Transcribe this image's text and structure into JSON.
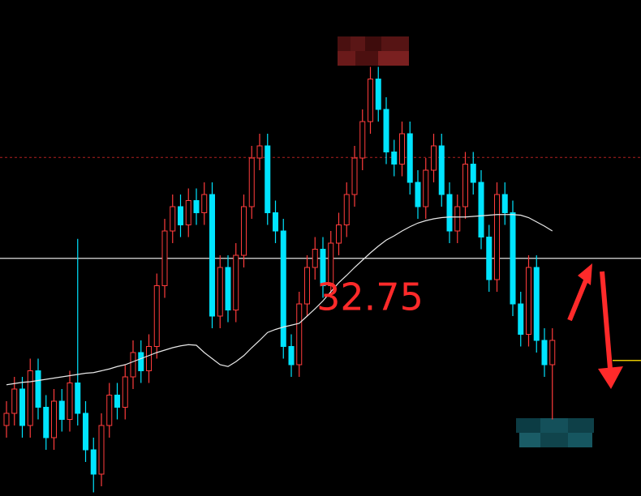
{
  "chart_data": {
    "type": "candlestick",
    "ylim": [
      29,
      37
    ],
    "up_color": "#ff3c3c",
    "down_color": "#00e4ff",
    "ma_color": "#e8e8e8",
    "open": [
      30.0,
      30.2,
      30.6,
      30.0,
      30.9,
      30.3,
      29.8,
      30.4,
      30.1,
      30.7,
      30.2,
      29.6,
      29.2,
      30.0,
      30.5,
      30.3,
      30.8,
      31.2,
      30.9,
      31.3,
      32.3,
      33.2,
      33.6,
      33.3,
      33.7,
      33.5,
      33.8,
      31.8,
      32.6,
      31.9,
      32.8,
      33.6,
      34.4,
      34.6,
      33.5,
      33.2,
      31.3,
      31.0,
      32.0,
      32.6,
      32.9,
      32.3,
      33.0,
      33.3,
      33.8,
      34.4,
      35.0,
      35.7,
      35.2,
      34.5,
      34.3,
      34.8,
      34.0,
      33.6,
      34.2,
      34.6,
      33.8,
      33.2,
      33.6,
      34.3,
      34.0,
      33.1,
      32.4,
      33.8,
      33.5,
      32.0,
      31.5,
      32.6,
      31.4,
      31.0
    ],
    "high": [
      30.4,
      30.8,
      30.8,
      31.1,
      31.1,
      30.5,
      30.6,
      30.6,
      30.9,
      33.07,
      30.4,
      29.8,
      30.2,
      30.7,
      30.7,
      31.0,
      31.4,
      31.4,
      31.5,
      32.5,
      33.4,
      33.8,
      33.8,
      33.9,
      33.9,
      34.0,
      34.0,
      32.8,
      32.8,
      33.0,
      33.8,
      34.6,
      34.8,
      34.8,
      33.7,
      33.4,
      31.5,
      32.2,
      32.8,
      33.1,
      33.1,
      33.2,
      33.5,
      34.0,
      34.6,
      35.2,
      35.9,
      35.9,
      35.4,
      34.7,
      35.0,
      35.0,
      34.2,
      34.4,
      34.8,
      34.8,
      34.0,
      33.8,
      34.5,
      34.5,
      34.2,
      33.3,
      34.0,
      34.0,
      33.7,
      32.2,
      32.8,
      32.8,
      31.6,
      31.6
    ],
    "low": [
      29.8,
      30.0,
      29.8,
      29.8,
      30.1,
      29.6,
      29.6,
      29.9,
      29.9,
      30.0,
      29.4,
      28.9,
      29.0,
      29.8,
      30.1,
      30.1,
      30.6,
      30.7,
      30.7,
      31.1,
      32.1,
      33.0,
      33.1,
      33.1,
      33.3,
      33.3,
      31.6,
      31.6,
      31.7,
      31.7,
      32.6,
      33.4,
      34.2,
      33.3,
      33.0,
      31.1,
      30.8,
      30.8,
      31.8,
      32.4,
      32.1,
      32.1,
      32.8,
      33.1,
      33.6,
      34.2,
      34.8,
      35.0,
      34.3,
      34.1,
      34.1,
      33.8,
      33.4,
      33.4,
      34.0,
      33.6,
      33.0,
      33.0,
      33.4,
      33.8,
      32.9,
      32.2,
      32.2,
      33.3,
      31.8,
      31.3,
      31.3,
      31.2,
      30.8,
      30.1
    ],
    "close": [
      30.2,
      30.6,
      30.0,
      30.9,
      30.3,
      29.8,
      30.4,
      30.1,
      30.7,
      30.2,
      29.6,
      29.2,
      30.0,
      30.5,
      30.3,
      30.8,
      31.2,
      30.9,
      31.3,
      32.3,
      33.2,
      33.6,
      33.3,
      33.7,
      33.5,
      33.8,
      31.8,
      32.6,
      31.9,
      32.8,
      33.6,
      34.4,
      34.6,
      33.5,
      33.2,
      31.3,
      31.0,
      32.0,
      32.6,
      32.9,
      32.3,
      33.0,
      33.3,
      33.8,
      34.4,
      35.0,
      35.7,
      35.2,
      34.5,
      34.3,
      34.8,
      34.0,
      33.6,
      34.2,
      34.6,
      33.8,
      33.2,
      33.6,
      34.3,
      34.0,
      33.1,
      32.4,
      33.8,
      33.5,
      32.0,
      31.5,
      32.6,
      31.4,
      31.0,
      31.4
    ],
    "moving_average": [
      30.67,
      30.69,
      30.71,
      30.72,
      30.74,
      30.76,
      30.78,
      30.8,
      30.82,
      30.84,
      30.86,
      30.87,
      30.9,
      30.93,
      30.97,
      31.0,
      31.05,
      31.1,
      31.15,
      31.2,
      31.24,
      31.28,
      31.31,
      31.33,
      31.32,
      31.2,
      31.1,
      31.0,
      30.97,
      31.05,
      31.15,
      31.28,
      31.4,
      31.53,
      31.58,
      31.62,
      31.65,
      31.68,
      31.8,
      31.92,
      32.05,
      32.2,
      32.35,
      32.47,
      32.6,
      32.72,
      32.84,
      32.95,
      33.05,
      33.12,
      33.2,
      33.27,
      33.33,
      33.37,
      33.4,
      33.42,
      33.43,
      33.43,
      33.43,
      33.44,
      33.45,
      33.46,
      33.47,
      33.47,
      33.47,
      33.46,
      33.42,
      33.35,
      33.28,
      33.2
    ],
    "resistance_level": 34.41,
    "annotation_level": 32.75,
    "support_level": 31.07
  }
}
